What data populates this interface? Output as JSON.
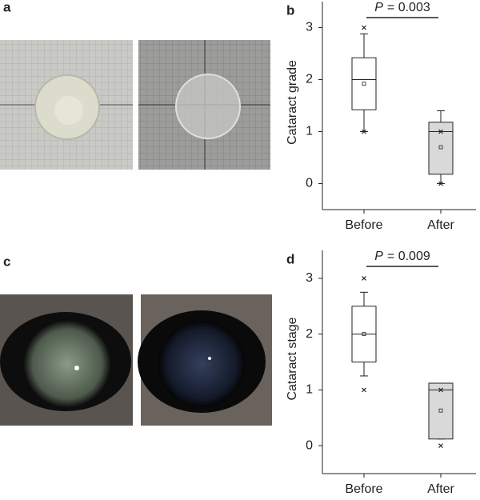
{
  "panel_labels": [
    "a",
    "c"
  ],
  "chart_data": [
    {
      "type": "box",
      "panel_label": "b",
      "y_label": "Cataract grade",
      "annotation": {
        "italic": "P",
        "text": "= 0.003"
      },
      "categories": [
        "Before",
        "After"
      ],
      "colors": [
        "#ffffff",
        "#d9d9d9"
      ],
      "boxes": [
        {
          "whisker_low": 1.0,
          "q1": 1.42,
          "median": 2.0,
          "q3": 2.42,
          "whisker_high": 2.88,
          "mean": 1.92,
          "outliers": [
            3,
            1
          ]
        },
        {
          "whisker_low": 0,
          "q1": 0.18,
          "median": 1.0,
          "q3": 1.18,
          "whisker_high": 1.4,
          "mean": 0.7,
          "outliers": [
            1,
            0
          ]
        }
      ],
      "ylim": [
        -0.5,
        3.5
      ],
      "yticks": [
        0,
        1,
        2,
        3
      ]
    },
    {
      "type": "box",
      "panel_label": "d",
      "y_label": "Cataract stage",
      "annotation": {
        "italic": "P",
        "text": "= 0.009"
      },
      "categories": [
        "Before",
        "After"
      ],
      "colors": [
        "#ffffff",
        "#d9d9d9"
      ],
      "boxes": [
        {
          "whisker_low": 1.25,
          "q1": 1.5,
          "median": 2.0,
          "q3": 2.5,
          "whisker_high": 2.75,
          "mean": 2.0,
          "outliers": [
            3,
            1
          ]
        },
        {
          "whisker_low": 0.12,
          "q1": 0.12,
          "median": 1.0,
          "q3": 1.12,
          "whisker_high": 1.12,
          "mean": 0.63,
          "outliers": [
            1,
            0
          ]
        }
      ],
      "ylim": [
        -0.5,
        3.5
      ],
      "yticks": [
        0,
        1,
        2,
        3
      ]
    }
  ]
}
